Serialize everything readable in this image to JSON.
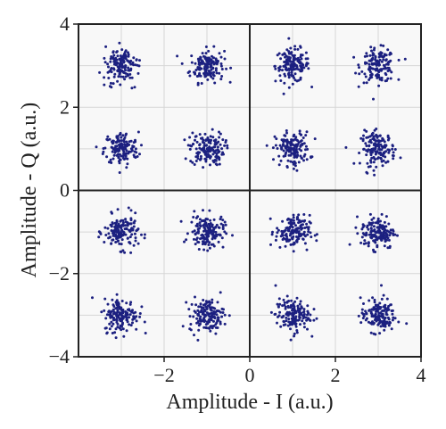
{
  "chart_data": {
    "type": "scatter",
    "title": "",
    "xlabel": "Amplitude - I (a.u.)",
    "ylabel": "Amplitude - Q (a.u.)",
    "xlim": [
      -4,
      4
    ],
    "ylim": [
      -4,
      4
    ],
    "x_ticks": [
      -2,
      0,
      2,
      4
    ],
    "y_ticks": [
      4,
      2,
      0,
      -2,
      -4
    ],
    "x_tick_labels": [
      "−2",
      "0",
      "2",
      "4"
    ],
    "y_tick_labels": [
      "4",
      "2",
      "0",
      "−2",
      "−4"
    ],
    "grid": true,
    "grid_step": 1,
    "zero_lines": true,
    "marker_color": "#1c2080",
    "points_per_cluster": 150,
    "cluster_spread": 0.2,
    "clusters": [
      {
        "i": -3,
        "q": 3
      },
      {
        "i": -1,
        "q": 3
      },
      {
        "i": 1,
        "q": 3
      },
      {
        "i": 3,
        "q": 3
      },
      {
        "i": -3,
        "q": 1
      },
      {
        "i": -1,
        "q": 1
      },
      {
        "i": 1,
        "q": 1
      },
      {
        "i": 3,
        "q": 1
      },
      {
        "i": -3,
        "q": -1
      },
      {
        "i": -1,
        "q": -1
      },
      {
        "i": 1,
        "q": -1
      },
      {
        "i": 3,
        "q": -1
      },
      {
        "i": -3,
        "q": -3
      },
      {
        "i": -1,
        "q": -3
      },
      {
        "i": 1,
        "q": -3
      },
      {
        "i": 3,
        "q": -3
      }
    ]
  }
}
